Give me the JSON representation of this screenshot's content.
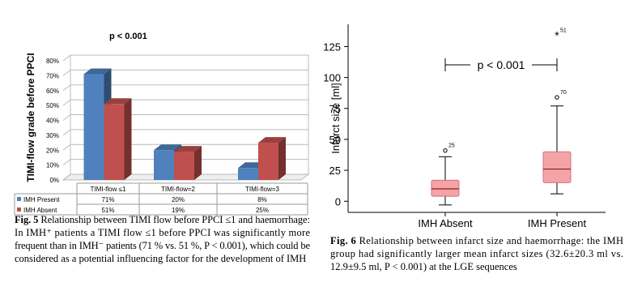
{
  "chart_data": [
    {
      "type": "bar",
      "title": "p < 0.001",
      "ylabel": "TIMI-flow grade before PPCI",
      "categories": [
        "TIMI-flow ≤1",
        "TIMI-flow=2",
        "TIMI-flow=3"
      ],
      "series": [
        {
          "name": "IMH Present",
          "color": "#4f81bd",
          "values": [
            71,
            20,
            8
          ],
          "value_labels": [
            "71%",
            "20%",
            "8%"
          ]
        },
        {
          "name": "IMH Absent",
          "color": "#c0504d",
          "values": [
            51,
            19,
            25
          ],
          "value_labels": [
            "51%",
            "19%",
            "25%"
          ]
        }
      ],
      "ylim": [
        0,
        80
      ],
      "yticks": [
        {
          "value": 0,
          "label": "0%"
        },
        {
          "value": 10,
          "label": "10%"
        },
        {
          "value": 20,
          "label": "20%"
        },
        {
          "value": 30,
          "label": "30%"
        },
        {
          "value": 40,
          "label": "40%"
        },
        {
          "value": 50,
          "label": "50%"
        },
        {
          "value": 60,
          "label": "60%"
        },
        {
          "value": 70,
          "label": "70%"
        },
        {
          "value": 80,
          "label": "80%"
        }
      ],
      "grid": true,
      "caption": {
        "label": "Fig. 5",
        "lines": [
          "Relationship between TIMI flow before PPCI ≤1 and haemorrhage:",
          "In IMH⁺ patients a TIMI flow ≤1 before PPCI was significantly more",
          "frequent than in IMH⁻ patients (71 % vs. 51 %, P < 0.001), which could be",
          "considered as a potential influencing factor for the development of IMH"
        ]
      }
    },
    {
      "type": "box",
      "ylabel": "Infarct size [ml]",
      "annotation": "p < 0.001",
      "categories": [
        "IMH Absent",
        "IMH Present"
      ],
      "color": "#f4a4a6",
      "boxes": [
        {
          "whisker_low": -3,
          "q1": 4,
          "median": 10,
          "q3": 17,
          "whisker_high": 36,
          "outliers": [
            {
              "value": 41,
              "label": "25",
              "symbol": "circle"
            }
          ]
        },
        {
          "whisker_low": 6,
          "q1": 15,
          "median": 26,
          "q3": 40,
          "whisker_high": 77,
          "outliers": [
            {
              "value": 84,
              "label": "70",
              "symbol": "circle"
            },
            {
              "value": 134,
              "label": "51",
              "symbol": "star"
            }
          ]
        }
      ],
      "ylim": [
        -9,
        143
      ],
      "yticks": [
        0,
        25,
        50,
        75,
        100,
        125
      ],
      "caption": {
        "label": "Fig. 6",
        "lines": [
          "Relationship between infarct size and haemorrhage: the IMH",
          "group had significantly larger mean infarct sizes (32.6±20.3 ml vs.",
          "12.9±9.5 ml, P < 0.001) at the LGE sequences"
        ]
      }
    }
  ]
}
